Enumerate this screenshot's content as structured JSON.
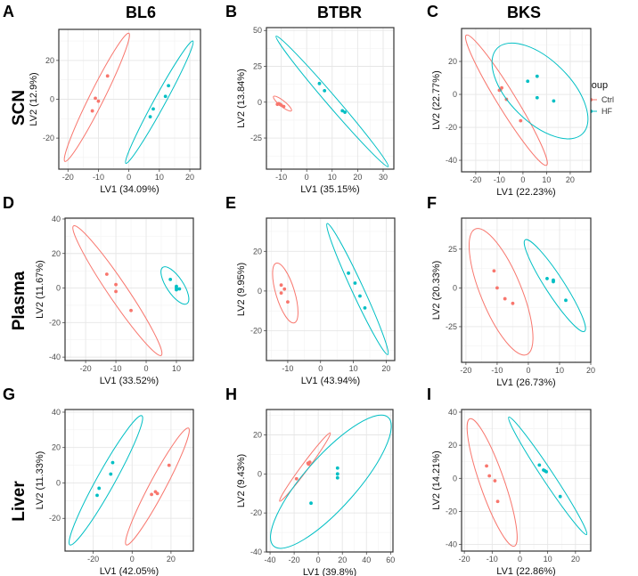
{
  "column_titles": [
    "BL6",
    "BTBR",
    "BKS"
  ],
  "row_titles": [
    "SCN",
    "Plasma",
    "Liver"
  ],
  "legend": {
    "title": "group",
    "items": [
      "Ctrl",
      "HF"
    ]
  },
  "colors": {
    "Ctrl": "#F8766D",
    "HF": "#00BFC4"
  },
  "chart_data": [
    {
      "panel": "A",
      "type": "scatter",
      "xlabel": "LV1 (34.09%)",
      "ylabel": "LV2 (12.9%)",
      "xlim": [
        -23,
        23.5
      ],
      "ylim": [
        -36,
        36
      ],
      "xticks": [
        -20,
        -10,
        0,
        10,
        20
      ],
      "yticks": [
        -20,
        0,
        20
      ],
      "grid": true,
      "series": [
        {
          "name": "Ctrl",
          "points": [
            [
              -7,
              12
            ],
            [
              -11,
              0.5
            ],
            [
              -10,
              -1
            ],
            [
              -12,
              -6
            ]
          ],
          "ellipse": {
            "ends": [
              [
                -21,
                -32
              ],
              [
                0,
                34
              ]
            ],
            "ratio": 0.1
          }
        },
        {
          "name": "HF",
          "points": [
            [
              13,
              7
            ],
            [
              12,
              1.5
            ],
            [
              8,
              -5
            ],
            [
              7,
              -9
            ]
          ],
          "ellipse": {
            "ends": [
              [
                -1,
                -33
              ],
              [
                21,
                30
              ]
            ],
            "ratio": 0.08
          }
        }
      ]
    },
    {
      "panel": "B",
      "type": "scatter",
      "xlabel": "LV1 (35.15%)",
      "ylabel": "LV2 (13.84%)",
      "xlim": [
        -15.8,
        34.2
      ],
      "ylim": [
        -46.7,
        52
      ],
      "xticks": [
        -10,
        0,
        10,
        20,
        30
      ],
      "yticks": [
        -25,
        0,
        25,
        50
      ],
      "grid": true,
      "series": [
        {
          "name": "Ctrl",
          "points": [
            [
              -11,
              -1
            ],
            [
              -10,
              -2
            ],
            [
              -9,
              -3
            ],
            [
              -11.5,
              -1.5
            ],
            [
              -10.5,
              -1.5
            ]
          ],
          "ellipse": {
            "ends": [
              [
                -13,
                4
              ],
              [
                -6,
                -6
              ]
            ],
            "ratio": 0.25
          }
        },
        {
          "name": "HF",
          "points": [
            [
              5,
              13
            ],
            [
              7,
              8
            ],
            [
              14,
              -6
            ],
            [
              15,
              -7
            ]
          ],
          "ellipse": {
            "ends": [
              [
                -12,
                46
              ],
              [
                32,
                -45
              ]
            ],
            "ratio": 0.06
          }
        }
      ]
    },
    {
      "panel": "C",
      "type": "scatter",
      "xlabel": "LV1 (22.23%)",
      "ylabel": "LV2 (22.77%)",
      "xlim": [
        -26,
        28.7
      ],
      "ylim": [
        -47,
        40
      ],
      "xticks": [
        -20,
        -10,
        0,
        10,
        20
      ],
      "yticks": [
        -40,
        -20,
        0,
        20
      ],
      "grid": true,
      "series": [
        {
          "name": "Ctrl",
          "points": [
            [
              -9,
              4
            ],
            [
              -9.5,
              3
            ],
            [
              -10,
              2.5
            ],
            [
              -7,
              -3
            ],
            [
              -1,
              -16
            ]
          ],
          "ellipse": {
            "ends": [
              [
                -24,
                36
              ],
              [
                10,
                -43
              ]
            ],
            "ratio": 0.12
          }
        },
        {
          "name": "HF",
          "points": [
            [
              2,
              8
            ],
            [
              6,
              11
            ],
            [
              6,
              -2
            ],
            [
              13,
              -4
            ]
          ],
          "ellipse": {
            "ends": [
              [
                -10.9,
                28
              ],
              [
                25.3,
                -23.8
              ]
            ],
            "ratio": 0.51
          }
        }
      ]
    },
    {
      "panel": "D",
      "type": "scatter",
      "xlabel": "LV1 (33.52%)",
      "ylabel": "LV2 (11.67%)",
      "xlim": [
        -26.8,
        15.6
      ],
      "ylim": [
        -42,
        40.5
      ],
      "xticks": [
        -20,
        -10,
        0,
        10
      ],
      "yticks": [
        -40,
        -20,
        0,
        20,
        40
      ],
      "grid": true,
      "series": [
        {
          "name": "Ctrl",
          "points": [
            [
              -13,
              8
            ],
            [
              -10,
              2
            ],
            [
              -10,
              -2
            ],
            [
              -5,
              -13
            ]
          ],
          "ellipse": {
            "ends": [
              [
                -24,
                36
              ],
              [
                5,
                -39
              ]
            ],
            "ratio": 0.12
          }
        },
        {
          "name": "HF",
          "points": [
            [
              8,
              5
            ],
            [
              10,
              1
            ],
            [
              10,
              0
            ],
            [
              11,
              -0.5
            ],
            [
              10,
              -1
            ]
          ],
          "ellipse": {
            "ends": [
              [
                5.5,
                12
              ],
              [
                13.5,
                -9
              ]
            ],
            "ratio": 0.38
          }
        }
      ]
    },
    {
      "panel": "E",
      "type": "scatter",
      "xlabel": "LV1 (43.94%)",
      "ylabel": "LV2 (9.95%)",
      "xlim": [
        -16.5,
        22.6
      ],
      "ylim": [
        -35,
        36.7
      ],
      "xticks": [
        -10,
        0,
        10,
        20
      ],
      "yticks": [
        -20,
        0,
        20
      ],
      "grid": true,
      "series": [
        {
          "name": "Ctrl",
          "points": [
            [
              -12,
              3
            ],
            [
              -11,
              1
            ],
            [
              -12,
              -1
            ],
            [
              -10,
              -5.5
            ]
          ],
          "ellipse": {
            "ends": [
              [
                -13.5,
                14
              ],
              [
                -8,
                -16
              ]
            ],
            "ratio": 0.3
          }
        },
        {
          "name": "HF",
          "points": [
            [
              8.5,
              9
            ],
            [
              10.5,
              4
            ],
            [
              12,
              -2.5
            ],
            [
              13.5,
              -8.5
            ]
          ],
          "ellipse": {
            "ends": [
              [
                2,
                34
              ],
              [
                20.5,
                -32
              ]
            ],
            "ratio": 0.08
          }
        }
      ]
    },
    {
      "panel": "F",
      "type": "scatter",
      "xlabel": "LV1 (26.73%)",
      "ylabel": "LV2 (20.33%)",
      "xlim": [
        -21.4,
        20
      ],
      "ylim": [
        -48,
        45
      ],
      "xticks": [
        -20,
        -10,
        0,
        10,
        20
      ],
      "yticks": [
        -25,
        0,
        25
      ],
      "grid": true,
      "series": [
        {
          "name": "Ctrl",
          "points": [
            [
              -11,
              11
            ],
            [
              -10,
              0
            ],
            [
              -7.5,
              -7
            ],
            [
              -5,
              -10
            ]
          ],
          "ellipse": {
            "ends": [
              [
                -17,
                38
              ],
              [
                -0.5,
                -43
              ]
            ],
            "ratio": 0.3
          }
        },
        {
          "name": "HF",
          "points": [
            [
              6,
              6
            ],
            [
              8,
              5
            ],
            [
              8,
              4.5
            ],
            [
              8,
              4
            ],
            [
              12,
              -8
            ]
          ],
          "ellipse": {
            "ends": [
              [
                -1,
                31
              ],
              [
                18,
                -28
              ]
            ],
            "ratio": 0.17
          }
        }
      ]
    },
    {
      "panel": "G",
      "type": "scatter",
      "xlabel": "LV1 (42.05%)",
      "ylabel": "LV2 (11.33%)",
      "xlim": [
        -34.5,
        31.5
      ],
      "ylim": [
        -38.5,
        41.5
      ],
      "xticks": [
        -20,
        0,
        20
      ],
      "yticks": [
        -20,
        0,
        20,
        40
      ],
      "grid": true,
      "series": [
        {
          "name": "Ctrl",
          "points": [
            [
              19,
              10
            ],
            [
              12,
              -5
            ],
            [
              13,
              -6
            ],
            [
              10,
              -6.5
            ]
          ],
          "ellipse": {
            "ends": [
              [
                -3,
                -35
              ],
              [
                29,
                31
              ]
            ],
            "ratio": 0.12
          }
        },
        {
          "name": "HF",
          "points": [
            [
              -10,
              11.5
            ],
            [
              -11,
              5
            ],
            [
              -17,
              -3
            ],
            [
              -18,
              -7
            ]
          ],
          "ellipse": {
            "ends": [
              [
                -32,
                -35
              ],
              [
                5,
                38
              ]
            ],
            "ratio": 0.12
          }
        }
      ]
    },
    {
      "panel": "H",
      "type": "scatter",
      "xlabel": "LV1 (39.8%)",
      "ylabel": "LV2 (9.43%)",
      "xlim": [
        -43,
        62
      ],
      "ylim": [
        -40,
        33
      ],
      "xticks": [
        -40,
        -20,
        0,
        20,
        40,
        60
      ],
      "yticks": [
        -40,
        -20,
        0,
        20
      ],
      "grid": true,
      "series": [
        {
          "name": "Ctrl",
          "points": [
            [
              -8,
              5
            ],
            [
              -7,
              6
            ],
            [
              -8.5,
              5.5
            ],
            [
              -18,
              -2.5
            ]
          ],
          "ellipse": {
            "ends": [
              [
                -32,
                -14
              ],
              [
                10,
                21
              ]
            ],
            "ratio": 0.08
          }
        },
        {
          "name": "HF",
          "points": [
            [
              16,
              3
            ],
            [
              16,
              0
            ],
            [
              16,
              -2
            ],
            [
              -6,
              -15
            ]
          ],
          "ellipse": {
            "ends": [
              [
                -37,
                -37
              ],
              [
                58,
                29
              ]
            ],
            "ratio": 0.3
          }
        }
      ]
    },
    {
      "panel": "I",
      "type": "scatter",
      "xlabel": "LV1 (22.86%)",
      "ylabel": "LV2 (14.21%)",
      "xlim": [
        -21,
        25.5
      ],
      "ylim": [
        -44,
        41.6
      ],
      "xticks": [
        -20,
        -10,
        0,
        10,
        20
      ],
      "yticks": [
        -40,
        -20,
        0,
        20,
        40
      ],
      "grid": true,
      "series": [
        {
          "name": "Ctrl",
          "points": [
            [
              -12,
              7.5
            ],
            [
              -11,
              1.5
            ],
            [
              -9,
              -1.5
            ],
            [
              -8,
              -14
            ]
          ],
          "ellipse": {
            "ends": [
              [
                -18,
                36
              ],
              [
                -2,
                -41
              ]
            ],
            "ratio": 0.18
          }
        },
        {
          "name": "HF",
          "points": [
            [
              7,
              8
            ],
            [
              8.5,
              5
            ],
            [
              9,
              4.5
            ],
            [
              9.5,
              4
            ],
            [
              14.5,
              -11
            ]
          ],
          "ellipse": {
            "ends": [
              [
                -4,
                37
              ],
              [
                24,
                -34
              ]
            ],
            "ratio": 0.08
          }
        }
      ]
    }
  ]
}
